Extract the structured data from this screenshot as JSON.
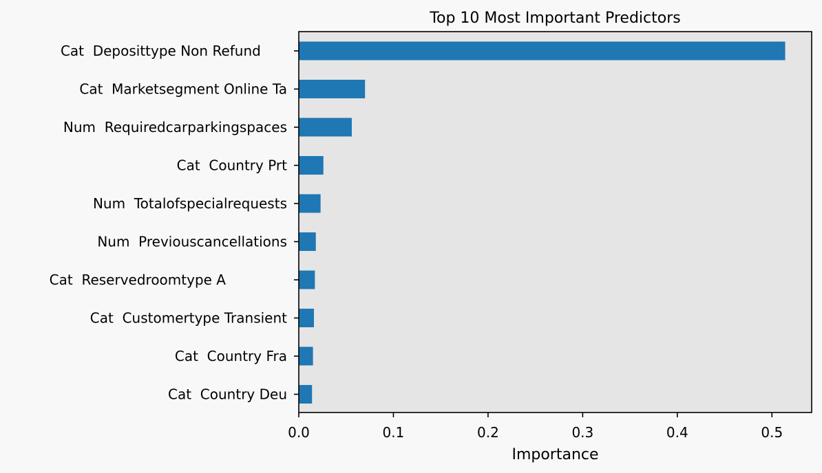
{
  "chart_data": {
    "type": "bar",
    "orientation": "horizontal",
    "title": "Top 10 Most Important Predictors",
    "xlabel": "Importance",
    "ylabel": "",
    "xlim": [
      0,
      0.542
    ],
    "xticks": [
      0.0,
      0.1,
      0.2,
      0.3,
      0.4,
      0.5
    ],
    "xtick_labels": [
      "0.0",
      "0.1",
      "0.2",
      "0.3",
      "0.4",
      "0.5"
    ],
    "grid": false,
    "legend": "none",
    "categories": [
      "Cat  Deposittype Non Refund      ",
      "Cat  Marketsegment Online Ta",
      "Num  Requiredcarparkingspaces",
      "Cat  Country Prt",
      "Num  Totalofspecialrequests",
      "Num  Previouscancellations",
      "Cat  Reservedroomtype A              ",
      "Cat  Customertype Transient",
      "Cat  Country Fra",
      "Cat  Country Deu"
    ],
    "values": [
      0.514,
      0.07,
      0.056,
      0.026,
      0.023,
      0.018,
      0.017,
      0.016,
      0.015,
      0.014
    ],
    "colors": {
      "bar": "#1f77b4",
      "plot_background": "#e5e5e5",
      "figure_background": "#f8f8f8",
      "axis": "#000000"
    }
  }
}
